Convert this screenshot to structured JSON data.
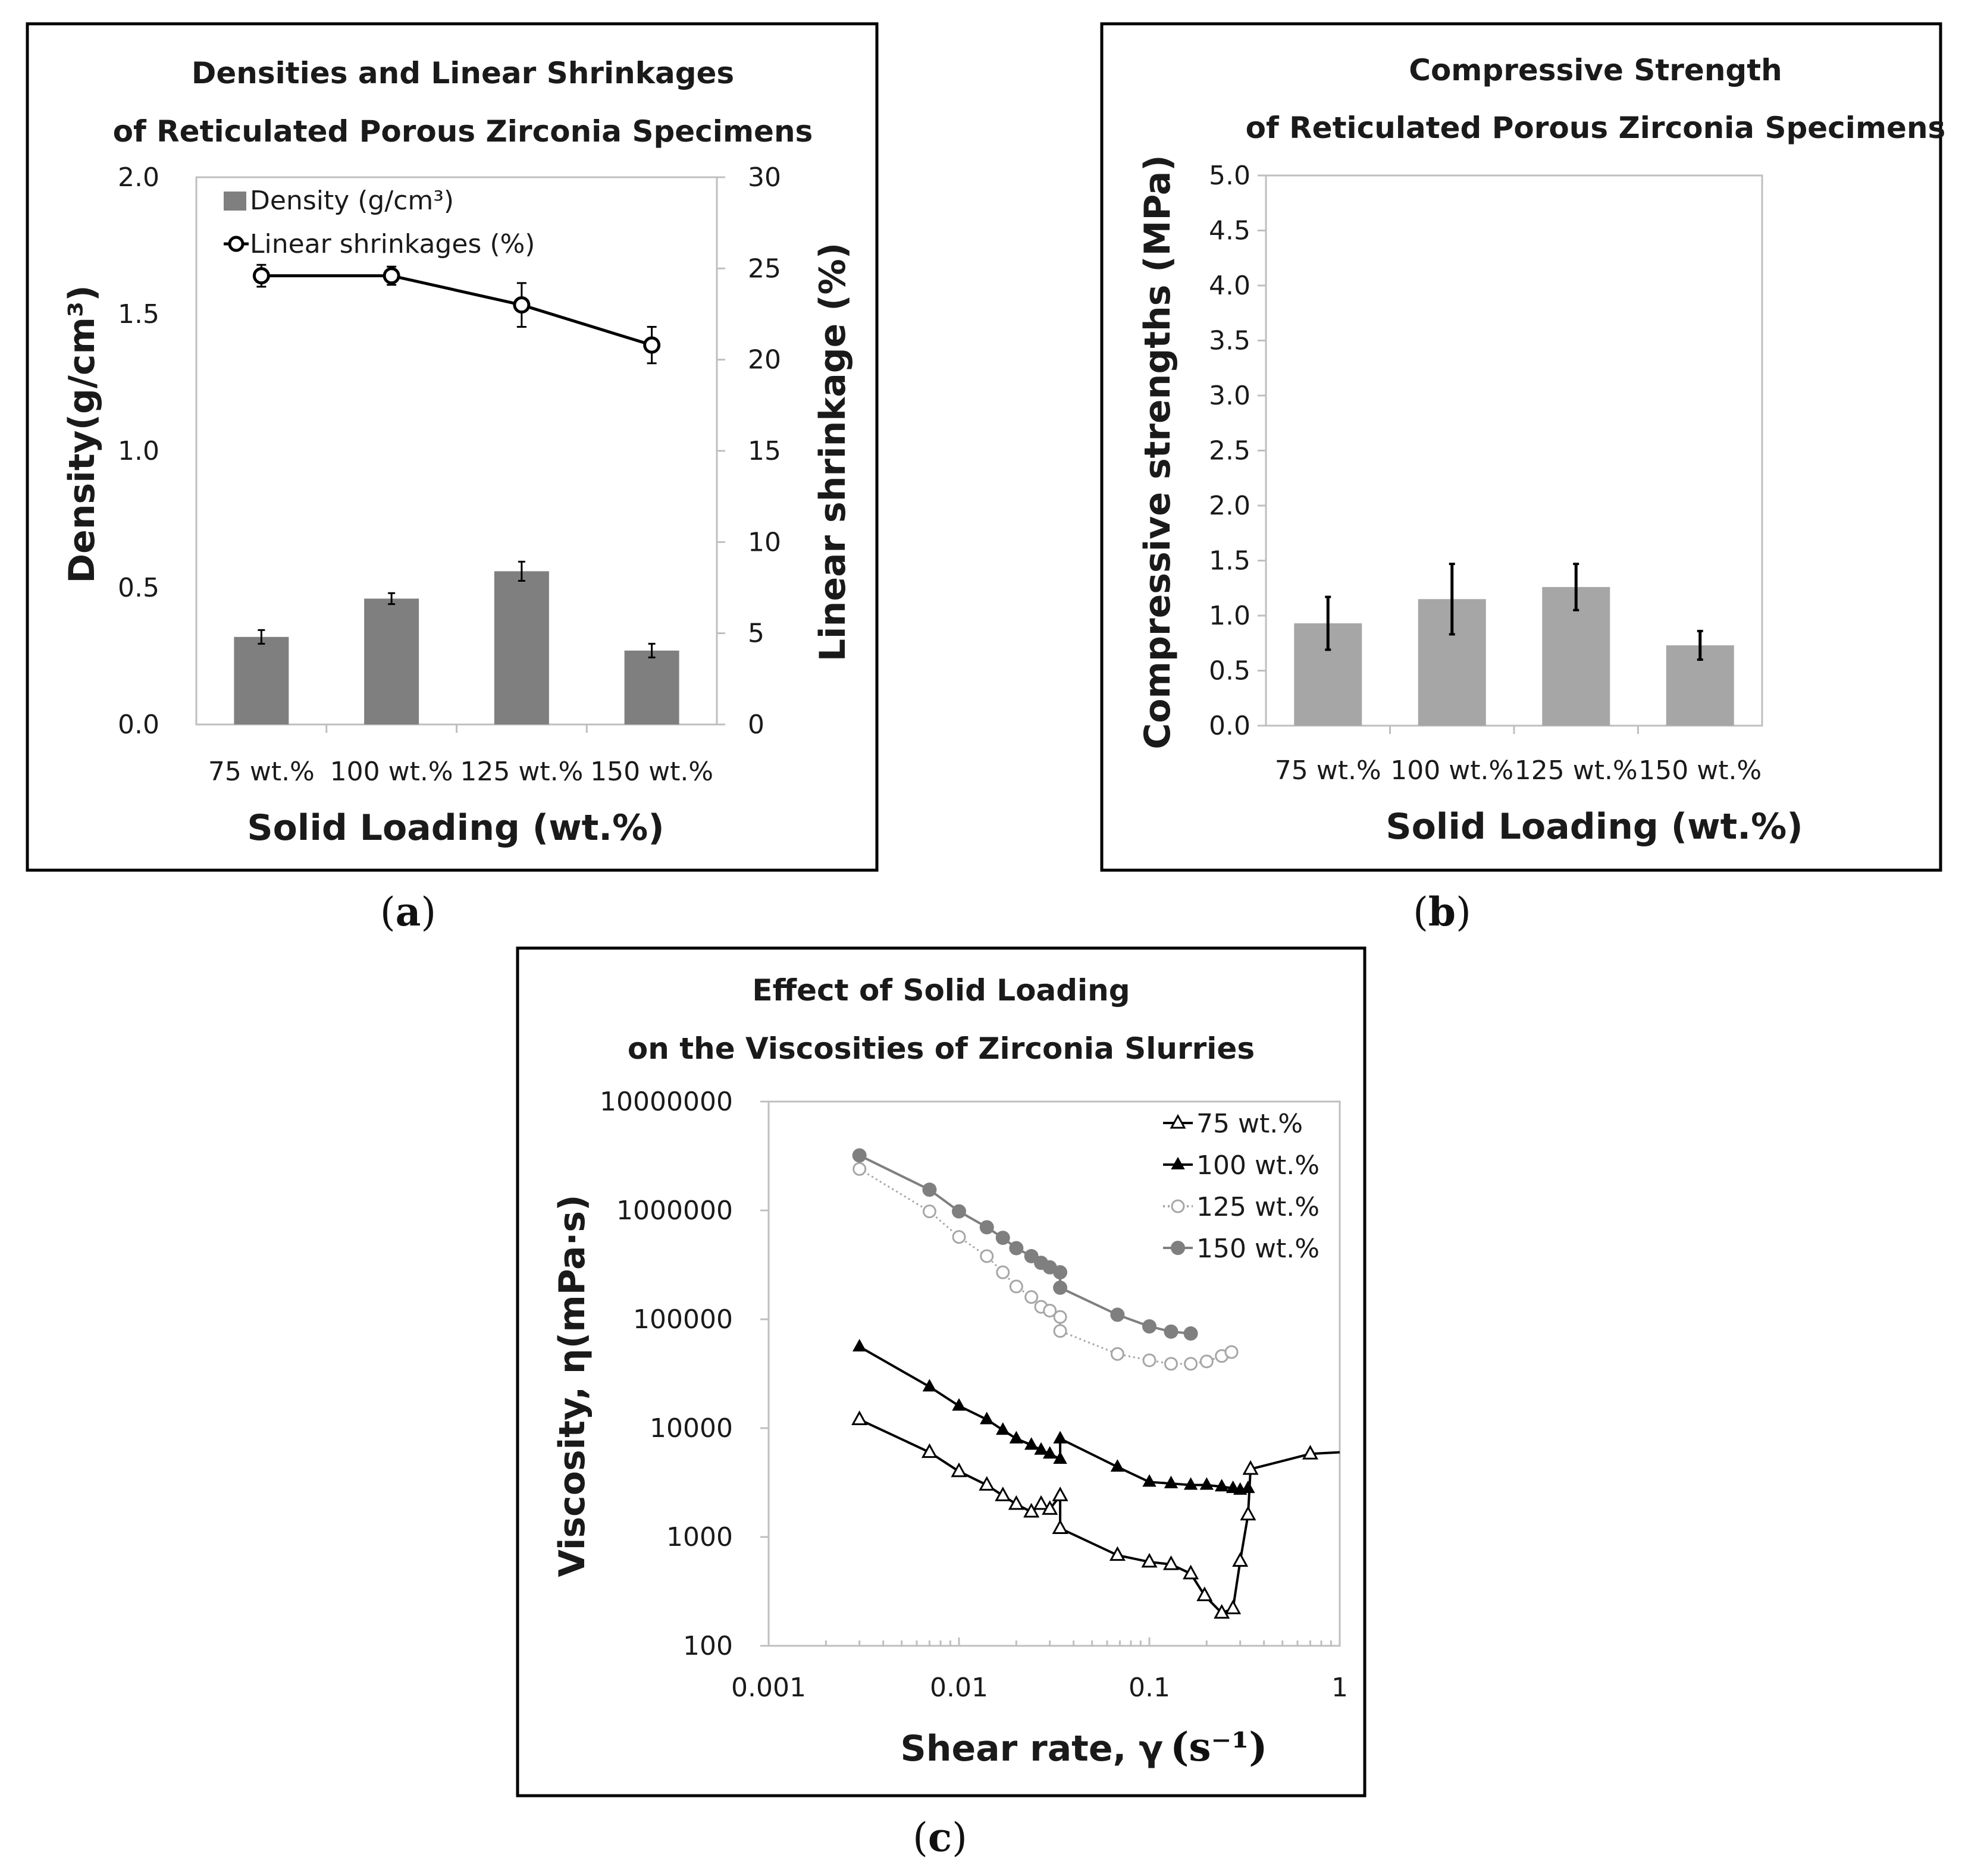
{
  "chart_data": [
    {
      "type": "bar",
      "panel_label": "a",
      "title_lines": [
        "Densities and Linear Shrinkages",
        "of Reticulated Porous Zirconia Specimens"
      ],
      "xlabel": "Solid Loading (wt.%)",
      "ylabel": "Density(g/cm³)",
      "y2label": "Linear shrinkage (%)",
      "categories": [
        "75 wt.%",
        "100 wt.%",
        "125 wt.%",
        "150 wt.%"
      ],
      "ylim": [
        0,
        2.0
      ],
      "yticks": [
        "0.0",
        "0.5",
        "1.0",
        "1.5",
        "2.0"
      ],
      "y2lim": [
        0,
        30
      ],
      "y2ticks": [
        "0",
        "5",
        "10",
        "15",
        "20",
        "25",
        "30"
      ],
      "legend": {
        "density": "Density (g/cm³)",
        "shrinkage": "Linear shrinkages (%)",
        "placement": "top-left"
      },
      "series": [
        {
          "name": "Density (g/cm³)",
          "kind": "bar",
          "axis": "left",
          "color": "#7f7f7f",
          "values": [
            0.32,
            0.46,
            0.56,
            0.27
          ],
          "errors": [
            0.025,
            0.02,
            0.035,
            0.025
          ]
        },
        {
          "name": "Linear shrinkages (%)",
          "kind": "line",
          "axis": "right",
          "color": "#000000",
          "values": [
            24.6,
            24.6,
            23.0,
            20.8
          ],
          "errors": [
            0.6,
            0.5,
            1.2,
            1.0
          ]
        }
      ]
    },
    {
      "type": "bar",
      "panel_label": "b",
      "title_lines": [
        "Compressive Strength",
        "of Reticulated Porous Zirconia Specimens"
      ],
      "xlabel": "Solid Loading (wt.%)",
      "ylabel": "Compressive strengths (MPa)",
      "categories": [
        "75 wt.%",
        "100 wt.%",
        "125 wt.%",
        "150 wt.%"
      ],
      "ylim": [
        0,
        5.0
      ],
      "yticks": [
        "0.0",
        "0.5",
        "1.0",
        "1.5",
        "2.0",
        "2.5",
        "3.0",
        "3.5",
        "4.0",
        "4.5",
        "5.0"
      ],
      "series": [
        {
          "name": "Compressive strength",
          "color": "#a6a6a6",
          "values": [
            0.93,
            1.15,
            1.26,
            0.73
          ],
          "errors": [
            0.24,
            0.32,
            0.21,
            0.13
          ]
        }
      ]
    },
    {
      "type": "scatter",
      "panel_label": "c",
      "title_lines": [
        "Effect of Solid Loading",
        "on the Viscosities of Zirconia Slurries"
      ],
      "xlabel": "Shear rate, γ",
      "xlabel_unit": "(s⁻¹)",
      "ylabel": "Viscosity, η(mPa·s)",
      "xscale": "log",
      "yscale": "log",
      "xlim": [
        0.001,
        1
      ],
      "ylim": [
        100,
        10000000
      ],
      "xticks": [
        "0.001",
        "0.01",
        "0.1",
        "1"
      ],
      "yticks": [
        "100",
        "1000",
        "10000",
        "100000",
        "1000000",
        "10000000"
      ],
      "legend_placement": "top-right",
      "series": [
        {
          "name": "75 wt.%",
          "color": "#000000",
          "marker": "open-triangle",
          "dotted": false,
          "x": [
            0.003,
            0.007,
            0.01,
            0.014,
            0.017,
            0.02,
            0.024,
            0.027,
            0.03,
            0.034,
            0.034,
            0.068,
            0.1,
            0.13,
            0.165,
            0.195,
            0.24,
            0.275,
            0.3,
            0.33,
            0.34,
            0.7,
            1.0
          ],
          "y": [
            12000,
            6000,
            4000,
            3000,
            2400,
            2000,
            1700,
            2000,
            1800,
            2400,
            1200,
            680,
            590,
            560,
            460,
            290,
            200,
            220,
            600,
            1600,
            4200,
            5800,
            6000
          ],
          "markers_count": 22
        },
        {
          "name": "100 wt.%",
          "color": "#000000",
          "marker": "filled-triangle",
          "dotted": false,
          "x": [
            0.003,
            0.007,
            0.01,
            0.014,
            0.017,
            0.02,
            0.024,
            0.027,
            0.03,
            0.034,
            0.034,
            0.068,
            0.1,
            0.13,
            0.165,
            0.2,
            0.24,
            0.275,
            0.3,
            0.33
          ],
          "y": [
            56000,
            24000,
            16000,
            12000,
            9600,
            8000,
            7000,
            6300,
            5800,
            5200,
            8000,
            4400,
            3200,
            3100,
            3000,
            3000,
            2900,
            2800,
            2700,
            2800
          ]
        },
        {
          "name": "125 wt.%",
          "color": "#a6a6a6",
          "marker": "open-circle",
          "dotted": true,
          "x": [
            0.003,
            0.007,
            0.01,
            0.014,
            0.017,
            0.02,
            0.024,
            0.027,
            0.03,
            0.034,
            0.034,
            0.068,
            0.1,
            0.13,
            0.165,
            0.2,
            0.24,
            0.27
          ],
          "y": [
            2400000,
            980000,
            570000,
            380000,
            270000,
            200000,
            160000,
            130000,
            120000,
            105000,
            78000,
            48000,
            42000,
            39000,
            39000,
            41000,
            46000,
            50000
          ]
        },
        {
          "name": "150 wt.%",
          "color": "#7f7f7f",
          "marker": "filled-circle",
          "dotted": false,
          "x": [
            0.003,
            0.007,
            0.01,
            0.014,
            0.017,
            0.02,
            0.024,
            0.027,
            0.03,
            0.034,
            0.034,
            0.068,
            0.1,
            0.13,
            0.165
          ],
          "y": [
            3200000,
            1550000,
            980000,
            700000,
            560000,
            450000,
            380000,
            330000,
            300000,
            270000,
            195000,
            110000,
            86000,
            77000,
            74000
          ]
        }
      ]
    }
  ]
}
